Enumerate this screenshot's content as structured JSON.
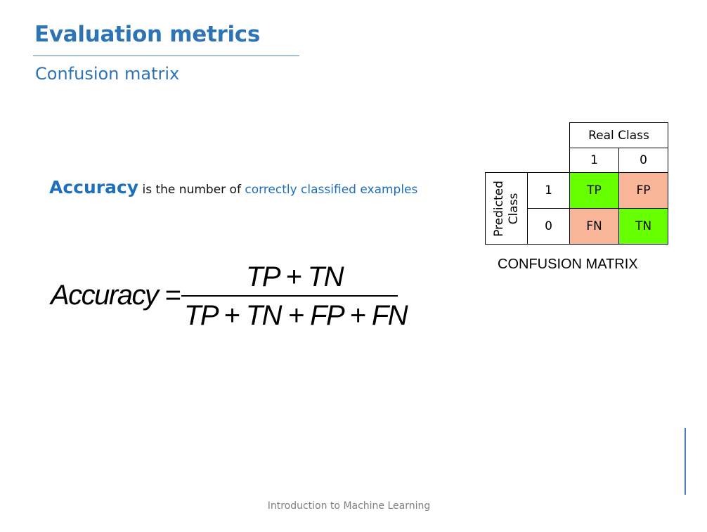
{
  "slide": {
    "title": "Evaluation metrics",
    "subtitle": "Confusion matrix",
    "accuracy": {
      "term": "Accuracy",
      "middle": " is the number of ",
      "highlight": "correctly classified examples"
    },
    "formula": {
      "lhs": "Accuracy",
      "numerator": "TP + TN",
      "denominator": "TP + TN + FP + FN"
    },
    "confusion_matrix": {
      "column_header": "Real Class",
      "column_values": [
        "1",
        "0"
      ],
      "row_header_line1": "Predicted",
      "row_header_line2": "Class",
      "row_values": [
        "1",
        "0"
      ],
      "cells": [
        [
          "TP",
          "FP"
        ],
        [
          "FN",
          "TN"
        ]
      ],
      "caption": "CONFUSION MATRIX",
      "colors": {
        "positive": "#66ff00",
        "negative": "#f9b597"
      }
    },
    "footer": "Introduction to Machine Learning"
  }
}
